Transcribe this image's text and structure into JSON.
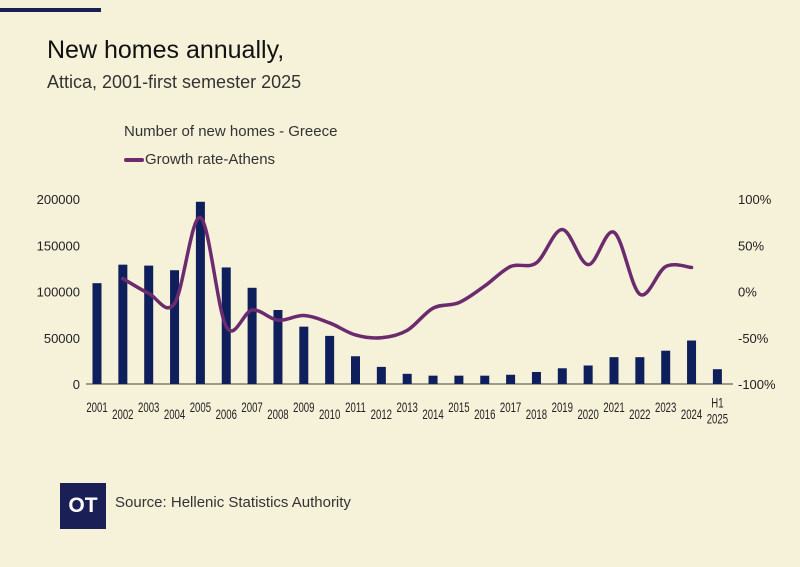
{
  "header": {
    "title": "New homes annually,",
    "subtitle": "Attica, 2001-first semester 2025"
  },
  "logo": "OT",
  "source": "Source: Hellenic Statistics Authority",
  "colors": {
    "bars": "#0f1f5c",
    "line": "#6b2b6e",
    "background": "#f6f1d9"
  },
  "chart_data": {
    "type": "bar+line",
    "categories": [
      "2001",
      "2002",
      "2003",
      "2004",
      "2005",
      "2006",
      "2007",
      "2008",
      "2009",
      "2010",
      "2011",
      "2012",
      "2013",
      "2014",
      "2015",
      "2016",
      "2017",
      "2018",
      "2019",
      "2020",
      "2021",
      "2022",
      "2023",
      "2024",
      "H1 2025"
    ],
    "series": [
      {
        "name": "Number of new homes - Greece",
        "type": "bar",
        "axis": "left",
        "values": [
          109000,
          129000,
          128000,
          123000,
          197000,
          126000,
          104000,
          80000,
          62000,
          52000,
          30000,
          18500,
          11000,
          9000,
          9000,
          9000,
          10000,
          13000,
          17000,
          20000,
          29000,
          29000,
          36000,
          47000,
          16000
        ]
      },
      {
        "name": "Growth rate-Athens",
        "type": "line",
        "axis": "right",
        "values": [
          null,
          14,
          -2,
          -13,
          80,
          -38,
          -20,
          -31,
          -26,
          -34,
          -47,
          -50,
          -42,
          -18,
          -12,
          6,
          27,
          31,
          67,
          29,
          64,
          -3,
          27,
          26,
          null
        ]
      }
    ],
    "left_axis": {
      "min": 0,
      "max": 200000,
      "ticks": [
        "0",
        "50000",
        "100000",
        "150000",
        "200000"
      ]
    },
    "right_axis": {
      "min": -100,
      "max": 100,
      "ticks": [
        "-100%",
        "-50%",
        "0%",
        "50%",
        "100%"
      ]
    },
    "grid": false,
    "legend": "top-left"
  }
}
